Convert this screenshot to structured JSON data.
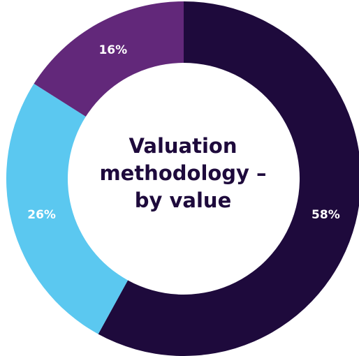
{
  "chart_data": {
    "type": "donut",
    "title": "Valuation methodology – by value",
    "values": [
      58,
      26,
      16
    ],
    "value_labels": [
      "58%",
      "26%",
      "16%"
    ],
    "colors": [
      "#1e0a3c",
      "#5bc8f0",
      "#62287a"
    ]
  }
}
